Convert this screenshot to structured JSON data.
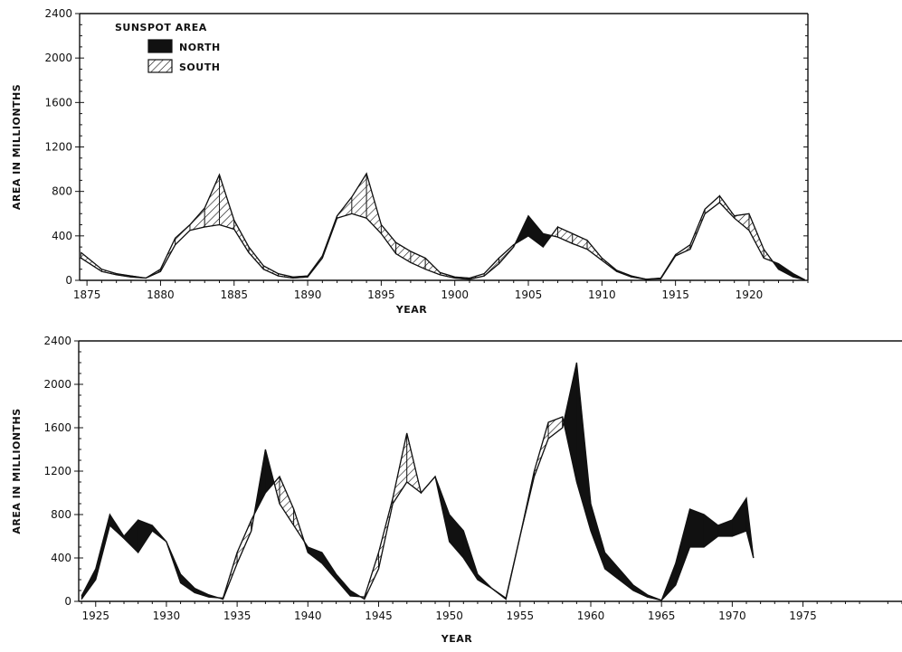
{
  "chart_data": [
    {
      "type": "area",
      "title": "",
      "legend_title": "SUNSPOT AREA",
      "legend_position": "top-left",
      "xlabel": "YEAR",
      "ylabel": "AREA IN MILLIONTHS",
      "xlim": [
        1874.5,
        1924
      ],
      "ylim": [
        0,
        2400
      ],
      "x_ticks": [
        1875,
        1880,
        1885,
        1890,
        1895,
        1900,
        1905,
        1910,
        1915,
        1920
      ],
      "y_ticks": [
        0,
        400,
        800,
        1200,
        1600,
        2000,
        2400
      ],
      "grid": false,
      "series": [
        {
          "name": "NORTH",
          "x": [
            1874.6,
            1876,
            1877,
            1878,
            1879,
            1880,
            1881,
            1882,
            1883,
            1884,
            1885,
            1886,
            1887,
            1888,
            1889,
            1890,
            1891,
            1892,
            1893,
            1894,
            1895,
            1896,
            1897,
            1898,
            1899,
            1900,
            1901,
            1902,
            1903,
            1904,
            1905,
            1906,
            1907,
            1908,
            1909,
            1910,
            1911,
            1912,
            1913,
            1914,
            1915,
            1916,
            1917,
            1918,
            1919,
            1920,
            1921,
            1922,
            1923,
            1923.8
          ],
          "values": [
            200,
            80,
            50,
            30,
            20,
            80,
            320,
            450,
            480,
            500,
            460,
            250,
            100,
            40,
            20,
            30,
            200,
            560,
            600,
            560,
            420,
            240,
            160,
            100,
            50,
            20,
            10,
            40,
            150,
            300,
            580,
            420,
            390,
            330,
            280,
            180,
            80,
            30,
            10,
            15,
            220,
            280,
            600,
            700,
            560,
            450,
            200,
            150,
            60,
            5
          ]
        },
        {
          "name": "SOUTH",
          "x": [
            1874.6,
            1876,
            1877,
            1878,
            1879,
            1880,
            1881,
            1882,
            1883,
            1884,
            1885,
            1886,
            1887,
            1888,
            1889,
            1890,
            1891,
            1892,
            1893,
            1894,
            1895,
            1896,
            1897,
            1898,
            1899,
            1900,
            1901,
            1902,
            1903,
            1904,
            1905,
            1906,
            1907,
            1908,
            1909,
            1910,
            1911,
            1912,
            1913,
            1914,
            1915,
            1916,
            1917,
            1918,
            1919,
            1920,
            1921,
            1922,
            1923,
            1923.8
          ],
          "values": [
            250,
            100,
            60,
            40,
            20,
            100,
            380,
            500,
            650,
            950,
            540,
            300,
            130,
            60,
            30,
            40,
            220,
            580,
            750,
            960,
            500,
            340,
            260,
            200,
            70,
            30,
            20,
            60,
            200,
            320,
            400,
            300,
            480,
            420,
            360,
            200,
            90,
            40,
            10,
            20,
            230,
            320,
            640,
            760,
            580,
            600,
            280,
            100,
            30,
            5
          ]
        }
      ]
    },
    {
      "type": "area",
      "title": "",
      "xlabel": "YEAR",
      "ylabel": "AREA IN MILLIONTHS",
      "xlim": [
        1923.8,
        1982
      ],
      "ylim": [
        0,
        2400
      ],
      "x_ticks": [
        1925,
        1930,
        1935,
        1940,
        1945,
        1950,
        1955,
        1960,
        1965,
        1970,
        1975
      ],
      "y_ticks": [
        0,
        400,
        800,
        1200,
        1600,
        2000,
        2400
      ],
      "grid": false,
      "series": [
        {
          "name": "NORTH",
          "x": [
            1924,
            1925,
            1926,
            1927,
            1928,
            1929,
            1930,
            1931,
            1932,
            1933,
            1934,
            1935,
            1936,
            1937,
            1938,
            1939,
            1940,
            1941,
            1942,
            1943,
            1944,
            1945,
            1946,
            1947,
            1948,
            1949,
            1950,
            1951,
            1952,
            1953,
            1954,
            1955,
            1956,
            1957,
            1958,
            1959,
            1960,
            1961,
            1962,
            1963,
            1964,
            1965,
            1966,
            1967,
            1968,
            1969,
            1970,
            1971,
            1971.5
          ],
          "values": [
            50,
            300,
            800,
            600,
            750,
            700,
            550,
            250,
            120,
            60,
            20,
            350,
            650,
            1400,
            900,
            700,
            500,
            450,
            250,
            100,
            20,
            300,
            900,
            1100,
            1000,
            1150,
            800,
            650,
            250,
            120,
            20,
            600,
            1150,
            1500,
            1600,
            2200,
            900,
            450,
            300,
            150,
            60,
            10,
            350,
            850,
            800,
            700,
            750,
            950,
            400
          ]
        },
        {
          "name": "SOUTH",
          "x": [
            1924,
            1925,
            1926,
            1927,
            1928,
            1929,
            1930,
            1931,
            1932,
            1933,
            1934,
            1935,
            1936,
            1937,
            1938,
            1939,
            1940,
            1941,
            1942,
            1943,
            1944,
            1945,
            1946,
            1947,
            1948,
            1949,
            1950,
            1951,
            1952,
            1953,
            1954,
            1955,
            1956,
            1957,
            1958,
            1959,
            1960,
            1961,
            1962,
            1963,
            1964,
            1965,
            1966,
            1967,
            1968,
            1969,
            1970,
            1971,
            1971.5
          ],
          "values": [
            20,
            200,
            700,
            580,
            450,
            650,
            550,
            170,
            80,
            40,
            30,
            450,
            750,
            1000,
            1150,
            850,
            450,
            350,
            200,
            50,
            40,
            450,
            950,
            1550,
            1000,
            1150,
            550,
            400,
            200,
            120,
            30,
            600,
            1200,
            1650,
            1700,
            1100,
            650,
            300,
            200,
            100,
            40,
            10,
            150,
            500,
            500,
            600,
            600,
            650,
            400
          ]
        }
      ]
    }
  ]
}
